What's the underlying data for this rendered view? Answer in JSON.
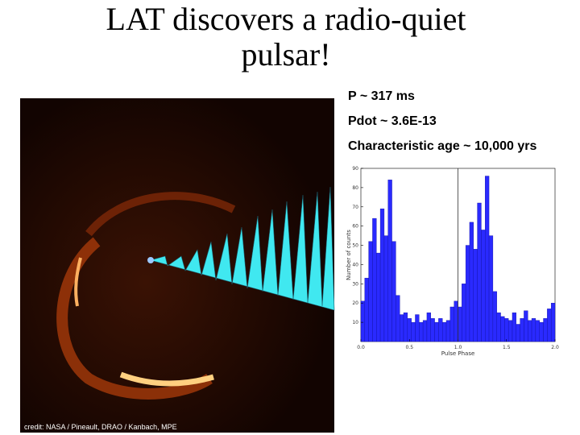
{
  "title": "LAT discovers a radio-quiet pulsar!",
  "bullets": [
    "P ~ 317 ms",
    "Pdot ~ 3.6E-13",
    "Characteristic age ~ 10,000 yrs"
  ],
  "image_credit": "credit: NASA / Pineault, DRAO / Kanbach, MPE",
  "chart_data": {
    "type": "histogram",
    "x_label": "Pulse Phase",
    "y_label": "Number of counts",
    "color": "#2a2aff",
    "bins": [
      0,
      0.04,
      0.08,
      0.12,
      0.16,
      0.2,
      0.24,
      0.28,
      0.32,
      0.36,
      0.4,
      0.44,
      0.48,
      0.52,
      0.56,
      0.6,
      0.64,
      0.68,
      0.72,
      0.76,
      0.8,
      0.84,
      0.88,
      0.92,
      0.96,
      1,
      1.04,
      1.08,
      1.12,
      1.16,
      1.2,
      1.24,
      1.28,
      1.32,
      1.36,
      1.4,
      1.44,
      1.48,
      1.52,
      1.56,
      1.6,
      1.64,
      1.68,
      1.72,
      1.76,
      1.8,
      1.84,
      1.88,
      1.92,
      1.96,
      2
    ],
    "values": [
      21,
      33,
      52,
      64,
      46,
      69,
      55,
      84,
      52,
      24,
      14,
      15,
      12,
      10,
      14,
      10,
      11,
      15,
      12,
      10,
      12,
      10,
      11,
      18,
      21,
      18,
      30,
      50,
      62,
      48,
      72,
      58,
      86,
      55,
      26,
      15,
      13,
      12,
      11,
      15,
      9,
      12,
      16,
      11,
      12,
      11,
      10,
      12,
      17,
      20
    ],
    "xlim": [
      0,
      2
    ],
    "ylim": [
      0,
      90
    ],
    "xticks": [
      {
        "value": 0,
        "label": "0.0"
      },
      {
        "value": 0.5,
        "label": "0.5"
      },
      {
        "value": 1,
        "label": "1.0"
      },
      {
        "value": 1.5,
        "label": "1.5"
      },
      {
        "value": 2,
        "label": "2.0"
      }
    ],
    "yticks": [
      10,
      20,
      30,
      40,
      50,
      60,
      70,
      80,
      90
    ]
  }
}
